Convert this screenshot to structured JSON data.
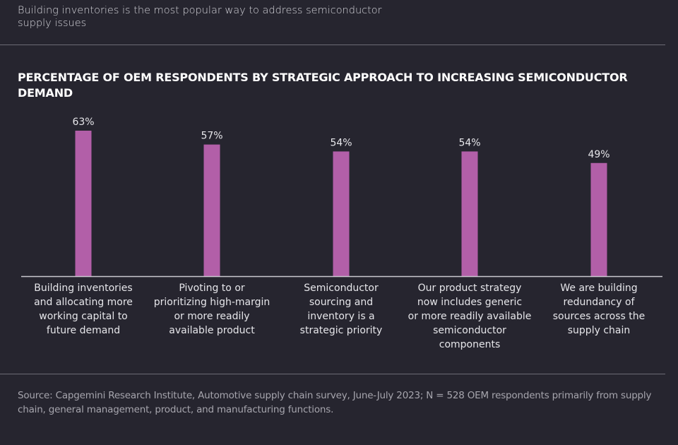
{
  "headline": "Building inventories is the most popular way to address semiconductor supply issues",
  "colors": {
    "background": "#26252f",
    "bar": "#b25fa8",
    "axis": "#c9c8cf"
  },
  "source": "Source: Capgemini Research Institute, Automotive supply chain survey, June-July 2023; N = 528 OEM respondents primarily from supply chain, general management, product, and manufacturing functions.",
  "chart_data": {
    "type": "bar",
    "title": "PERCENTAGE OF  OEM RESPONDENTS BY STRATEGIC APPROACH TO INCREASING SEMICONDUCTOR DEMAND",
    "xlabel": "",
    "ylabel": "",
    "ylim": [
      0,
      100
    ],
    "grid": false,
    "categories": [
      "Building inventories and allocating more working capital to future demand",
      "Pivoting to or prioritizing high-margin or more readily available product",
      "Semiconductor sourcing and inventory is a strategic priority",
      "Our product strategy now includes generic or more readily available semiconductor components",
      "We are building redundancy of sources across the supply chain"
    ],
    "category_lines": [
      [
        "Building inventories",
        "and allocating more",
        "working capital to",
        "future demand"
      ],
      [
        "Pivoting to or",
        "prioritizing high-margin",
        "or more readily",
        "available product"
      ],
      [
        "Semiconductor",
        "sourcing and",
        "inventory is a",
        "strategic priority"
      ],
      [
        "Our product strategy",
        "now includes generic",
        "or more readily available",
        "semiconductor",
        "components"
      ],
      [
        "We are building",
        "redundancy of",
        "sources across the",
        "supply chain"
      ]
    ],
    "values": [
      63,
      57,
      54,
      54,
      49
    ],
    "data_labels": [
      "63%",
      "57%",
      "54%",
      "54%",
      "49%"
    ]
  }
}
